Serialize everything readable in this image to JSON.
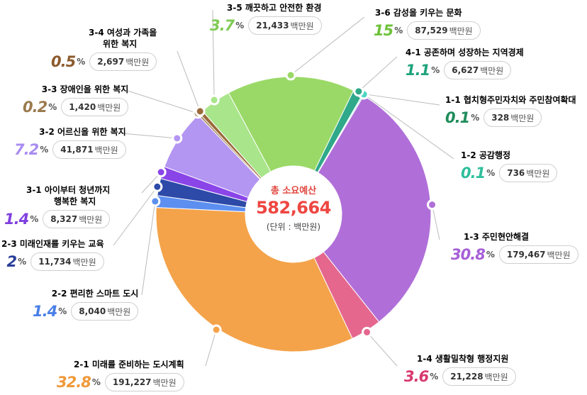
{
  "center": {
    "label": "총 소요예산",
    "total": "582,664",
    "unit": "(단위 : 백만원)"
  },
  "unit_suffix": "백만원",
  "chart_data": {
    "type": "pie",
    "title": "총 소요예산",
    "total": 582664,
    "unit": "백만원",
    "slices": [
      {
        "name": "1-1 협치형주민자치와 주민참여확대",
        "percent": 0.1,
        "amount": "328",
        "value": 328,
        "color": "#2bbd8c"
      },
      {
        "name": "1-2 공감행정",
        "percent": 0.1,
        "amount": "736",
        "value": 736,
        "color": "#4fd6c2"
      },
      {
        "name": "1-3 주민현안해결",
        "percent": 30.8,
        "amount": "179,467",
        "value": 179467,
        "color": "#b06fd8"
      },
      {
        "name": "1-4 생활밀착형 행정지원",
        "percent": 3.6,
        "amount": "21,228",
        "value": 21228,
        "color": "#e5678e"
      },
      {
        "name": "2-1 미래를 준비하는 도시계획",
        "percent": 32.8,
        "amount": "191,227",
        "value": 191227,
        "color": "#f4a34a"
      },
      {
        "name": "2-2 편리한 스마트 도시",
        "percent": 1.4,
        "amount": "8,040",
        "value": 8040,
        "color": "#5c8ff0"
      },
      {
        "name": "2-3 미래인재를 키우는 교육",
        "percent": 2,
        "amount": "11,734",
        "value": 11734,
        "color": "#2d4aa8"
      },
      {
        "name": "3-1 아이부터 청년까지 행복한 복지",
        "percent": 1.4,
        "amount": "8,327",
        "value": 8327,
        "color": "#8a45e8"
      },
      {
        "name": "3-2 어르신을 위한 복지",
        "percent": 7.2,
        "amount": "41,871",
        "value": 41871,
        "color": "#b395f2"
      },
      {
        "name": "3-3 장애인을 위한 복지",
        "percent": 0.2,
        "amount": "1,420",
        "value": 1420,
        "color": "#a7885b"
      },
      {
        "name": "3-4 여성과 가족을 위한 복지",
        "percent": 0.5,
        "amount": "2,697",
        "value": 2697,
        "color": "#9a6a3a"
      },
      {
        "name": "3-5 깨끗하고 안전한 환경",
        "percent": 3.7,
        "amount": "21,433",
        "value": 21433,
        "color": "#a9e58a"
      },
      {
        "name": "3-6 감성을 키우는 문화",
        "percent": 15,
        "amount": "87,529",
        "value": 87529,
        "color": "#9ad968"
      },
      {
        "name": "4-1 공존하며 성장하는 지역경제",
        "percent": 1.1,
        "amount": "6,627",
        "value": 6627,
        "color": "#2fa98a"
      }
    ]
  },
  "labels": {
    "s11": {
      "title": "1-1 협치형주민자치와 주민참여확대",
      "pct": "0.1",
      "amount": "328",
      "color": "#1f8c5c"
    },
    "s12": {
      "title": "1-2 공감행정",
      "pct": "0.1",
      "amount": "736",
      "color": "#2fbf9c"
    },
    "s13": {
      "title": "1-3 주민현안해결",
      "pct": "30.8",
      "amount": "179,467",
      "color": "#a65fd6"
    },
    "s14": {
      "title": "1-4 생활밀착형 행정지원",
      "pct": "3.6",
      "amount": "21,228",
      "color": "#d9386f"
    },
    "s21": {
      "title": "2-1 미래를 준비하는 도시계획",
      "pct": "32.8",
      "amount": "191,227",
      "color": "#f0993a"
    },
    "s22": {
      "title": "2-2 편리한 스마트 도시",
      "pct": "1.4",
      "amount": "8,040",
      "color": "#4a7fe8"
    },
    "s23": {
      "title": "2-3 미래인재를 키우는 교육",
      "pct": "2",
      "amount": "11,734",
      "color": "#2a3f9a"
    },
    "s31": {
      "title1": "3-1 아이부터 청년까지",
      "title2": "행복한 복지",
      "pct": "1.4",
      "amount": "8,327",
      "color": "#7f3fe0"
    },
    "s32": {
      "title": "3-2 어르신을 위한 복지",
      "pct": "7.2",
      "amount": "41,871",
      "color": "#a98cf0"
    },
    "s33": {
      "title": "3-3 장애인을 위한 복지",
      "pct": "0.2",
      "amount": "1,420",
      "color": "#9b7a4e"
    },
    "s34": {
      "title1": "3-4 여성과 가족을",
      "title2": "위한 복지",
      "pct": "0.5",
      "amount": "2,697",
      "color": "#8c5a2c"
    },
    "s35": {
      "title": "3-5 깨끗하고 안전한 환경",
      "pct": "3.7",
      "amount": "21,433",
      "color": "#7fcb55"
    },
    "s36": {
      "title": "3-6 감성을 키우는 문화",
      "pct": "15",
      "amount": "87,529",
      "color": "#6fc23a"
    },
    "s41": {
      "title": "4-1 공존하며 성장하는 지역경제",
      "pct": "1.1",
      "amount": "6,627",
      "color": "#1fa37c"
    }
  }
}
